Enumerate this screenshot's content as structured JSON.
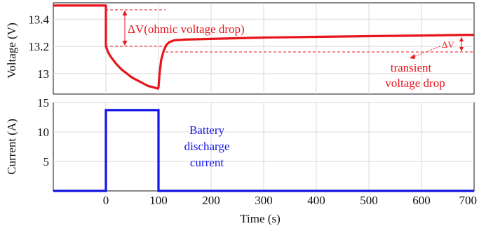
{
  "chart_data": [
    {
      "type": "line",
      "ylabel": "Voltage (V)",
      "xlim": [
        -100,
        700
      ],
      "ylim": [
        12.85,
        13.52
      ],
      "yticks": [
        "13.4",
        "13.2",
        "13"
      ],
      "ytick_values": [
        13.4,
        13.2,
        13.0
      ],
      "grid": true,
      "color": "#e8141c",
      "series": [
        {
          "x": [
            -100,
            0,
            0,
            5,
            10,
            20,
            30,
            40,
            50,
            60,
            70,
            80,
            90,
            99,
            100,
            102,
            105,
            110,
            115,
            120,
            130,
            150,
            200,
            300,
            400,
            500,
            600,
            700
          ],
          "y": [
            13.5,
            13.5,
            13.2,
            13.15,
            13.12,
            13.07,
            13.03,
            13.0,
            12.97,
            12.95,
            12.93,
            12.91,
            12.9,
            12.89,
            12.9,
            13.0,
            13.1,
            13.17,
            13.21,
            13.23,
            13.245,
            13.25,
            13.255,
            13.265,
            13.27,
            13.275,
            13.28,
            13.285
          ]
        }
      ],
      "annotations": {
        "ohmic": "ΔV(ohmic voltage drop)",
        "transient_dv": "ΔV",
        "transient_line1": "transient",
        "transient_line2": "voltage drop"
      }
    },
    {
      "type": "line",
      "ylabel": "Current (A)",
      "xlabel": "Time (s)",
      "xlim": [
        -100,
        700
      ],
      "ylim": [
        0,
        15
      ],
      "yticks": [
        "15",
        "10",
        "5"
      ],
      "ytick_values": [
        15,
        10,
        5
      ],
      "xticks": [
        "0",
        "100",
        "200",
        "300",
        "400",
        "500",
        "600",
        "700"
      ],
      "xtick_values": [
        0,
        100,
        200,
        300,
        400,
        500,
        600,
        700
      ],
      "grid": true,
      "color": "#1414e6",
      "series": [
        {
          "x": [
            -100,
            0,
            0,
            100,
            100,
            700
          ],
          "y": [
            0,
            0,
            13.7,
            13.7,
            0,
            0
          ]
        }
      ],
      "annotations": {
        "line1": "Battery",
        "line2": "discharge",
        "line3": "current"
      }
    }
  ]
}
